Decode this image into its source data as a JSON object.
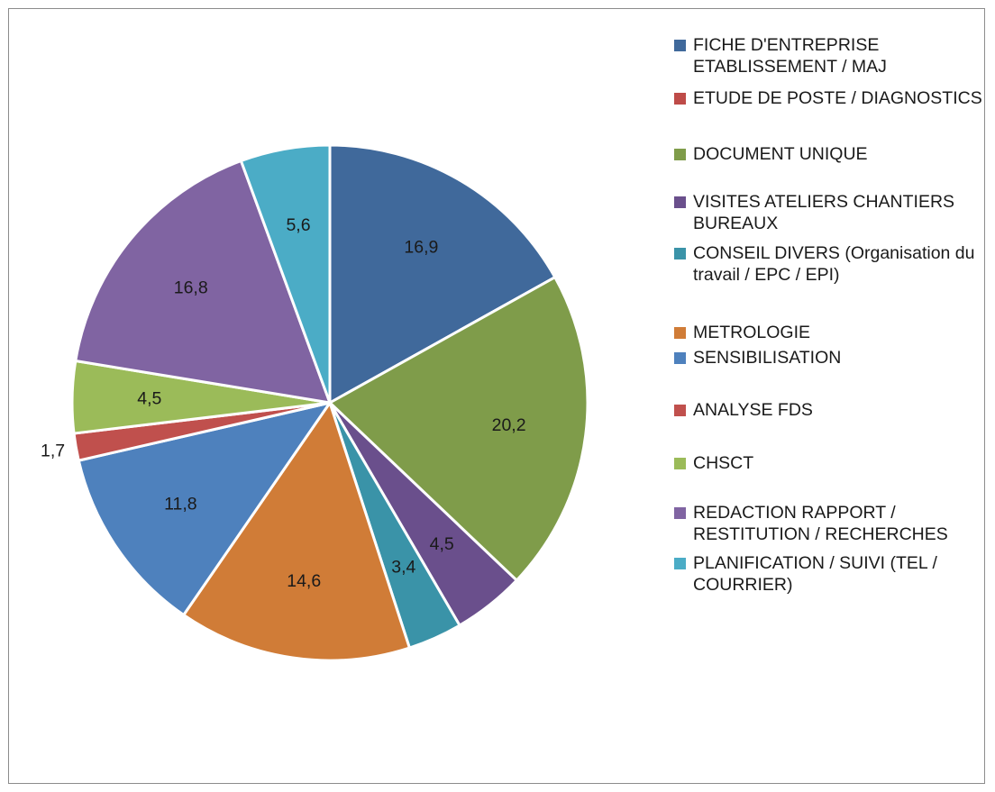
{
  "chart_data": {
    "type": "pie",
    "title": "",
    "categories": [
      "FICHE D'ENTREPRISE ETABLISSEMENT / MAJ",
      "ETUDE DE POSTE / DIAGNOSTICS",
      "DOCUMENT UNIQUE",
      "VISITES ATELIERS CHANTIERS BUREAUX",
      "CONSEIL DIVERS (Organisation du travail / EPC / EPI)",
      "METROLOGIE",
      "SENSIBILISATION",
      "ANALYSE FDS",
      "CHSCT",
      "REDACTION RAPPORT / RESTITUTION / RECHERCHES",
      "PLANIFICATION / SUIVI (TEL / COURRIER)"
    ],
    "values": [
      16.9,
      0,
      20.2,
      4.5,
      3.4,
      14.6,
      11.8,
      1.7,
      4.5,
      16.8,
      5.6
    ],
    "data_labels": [
      "16,9",
      "",
      "20,2",
      "4,5",
      "3,4",
      "14,6",
      "11,8",
      "1,7",
      "4,5",
      "16,8",
      "5,6"
    ],
    "colors": [
      "#40699b",
      "#be4b48",
      "#7f9c4a",
      "#6a4f8c",
      "#3a93a8",
      "#d07c37",
      "#4e81bd",
      "#c0504d",
      "#9bbb59",
      "#8064a2",
      "#4bacc6"
    ],
    "legend_position": "right"
  }
}
